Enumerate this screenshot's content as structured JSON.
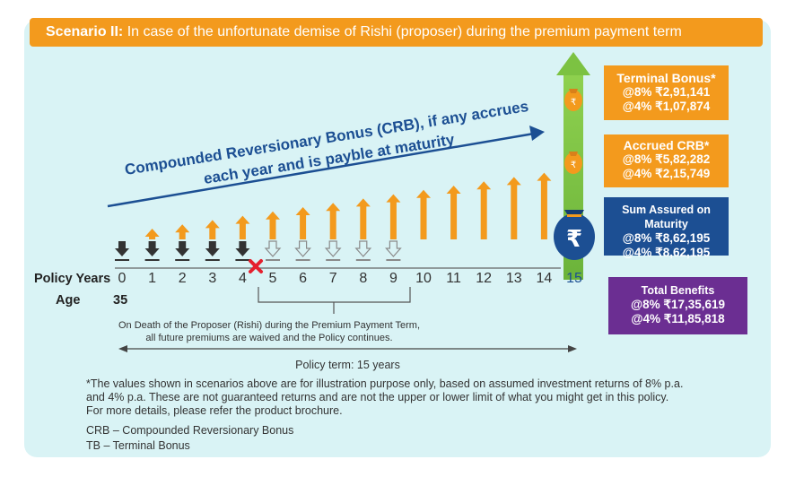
{
  "banner": {
    "bold": "Scenario II:",
    "text": "In case of the unfortunate demise of Rishi (proposer) during the premium payment term"
  },
  "crb_line1": "Compounded Reversionary Bonus (CRB), if any accrues",
  "crb_line2": "each year and is payble at maturity",
  "terminal_bonus": {
    "title": "Terminal Bonus*",
    "at8": "@8% ₹2,91,141",
    "at4": "@4% ₹1,07,874"
  },
  "accrued_crb": {
    "title": "Accrued CRB*",
    "at8": "@8% ₹5,82,282",
    "at4": "@4% ₹2,15,749"
  },
  "sum_assured": {
    "title": "Sum Assured on Maturity",
    "at8": "@8% ₹8,62,195",
    "at4": "@4% ₹8,62,195"
  },
  "total_benefits": {
    "title": "Total Benefits",
    "at8": "@8% ₹17,35,619",
    "at4": "@4% ₹11,85,818"
  },
  "policy_years_label": "Policy Years",
  "age_label": "Age",
  "age_value": "35",
  "years": [
    "0",
    "1",
    "2",
    "3",
    "4",
    "5",
    "6",
    "7",
    "8",
    "9",
    "10",
    "11",
    "12",
    "13",
    "14",
    "15"
  ],
  "rupee_symbol": "₹",
  "death_note_line1": "On Death of the Proposer (Rishi) during the Premium Payment Term,",
  "death_note_line2": "all future premiums are waived and the Policy continues.",
  "policy_term": "Policy term: 15 years",
  "disclaimer_line1": "*The values shown in scenarios above are for illustration purpose only, based on assumed investment returns of 8% p.a.",
  "disclaimer_line2": "and 4% p.a. These are not guaranteed returns and are not the upper or lower limit of what you might get in this policy.",
  "disclaimer_line3": "For more details, please refer the product brochure.",
  "footnote_crb": "CRB – Compounded Reversionary Bonus",
  "footnote_tb": "TB – Terminal Bonus",
  "colors": {
    "orange": "#f39a1d",
    "navy": "#1c4f93",
    "purple": "#6b2e92",
    "green": "#7cc242",
    "panel": "#d9f3f5",
    "death_mark": "#e5202e"
  },
  "icons": [
    "paid-premium-arrow-icon",
    "waived-premium-arrow-icon",
    "bonus-arrow-icon",
    "death-cross-icon",
    "money-bag-icon",
    "maturity-arrow-icon"
  ]
}
